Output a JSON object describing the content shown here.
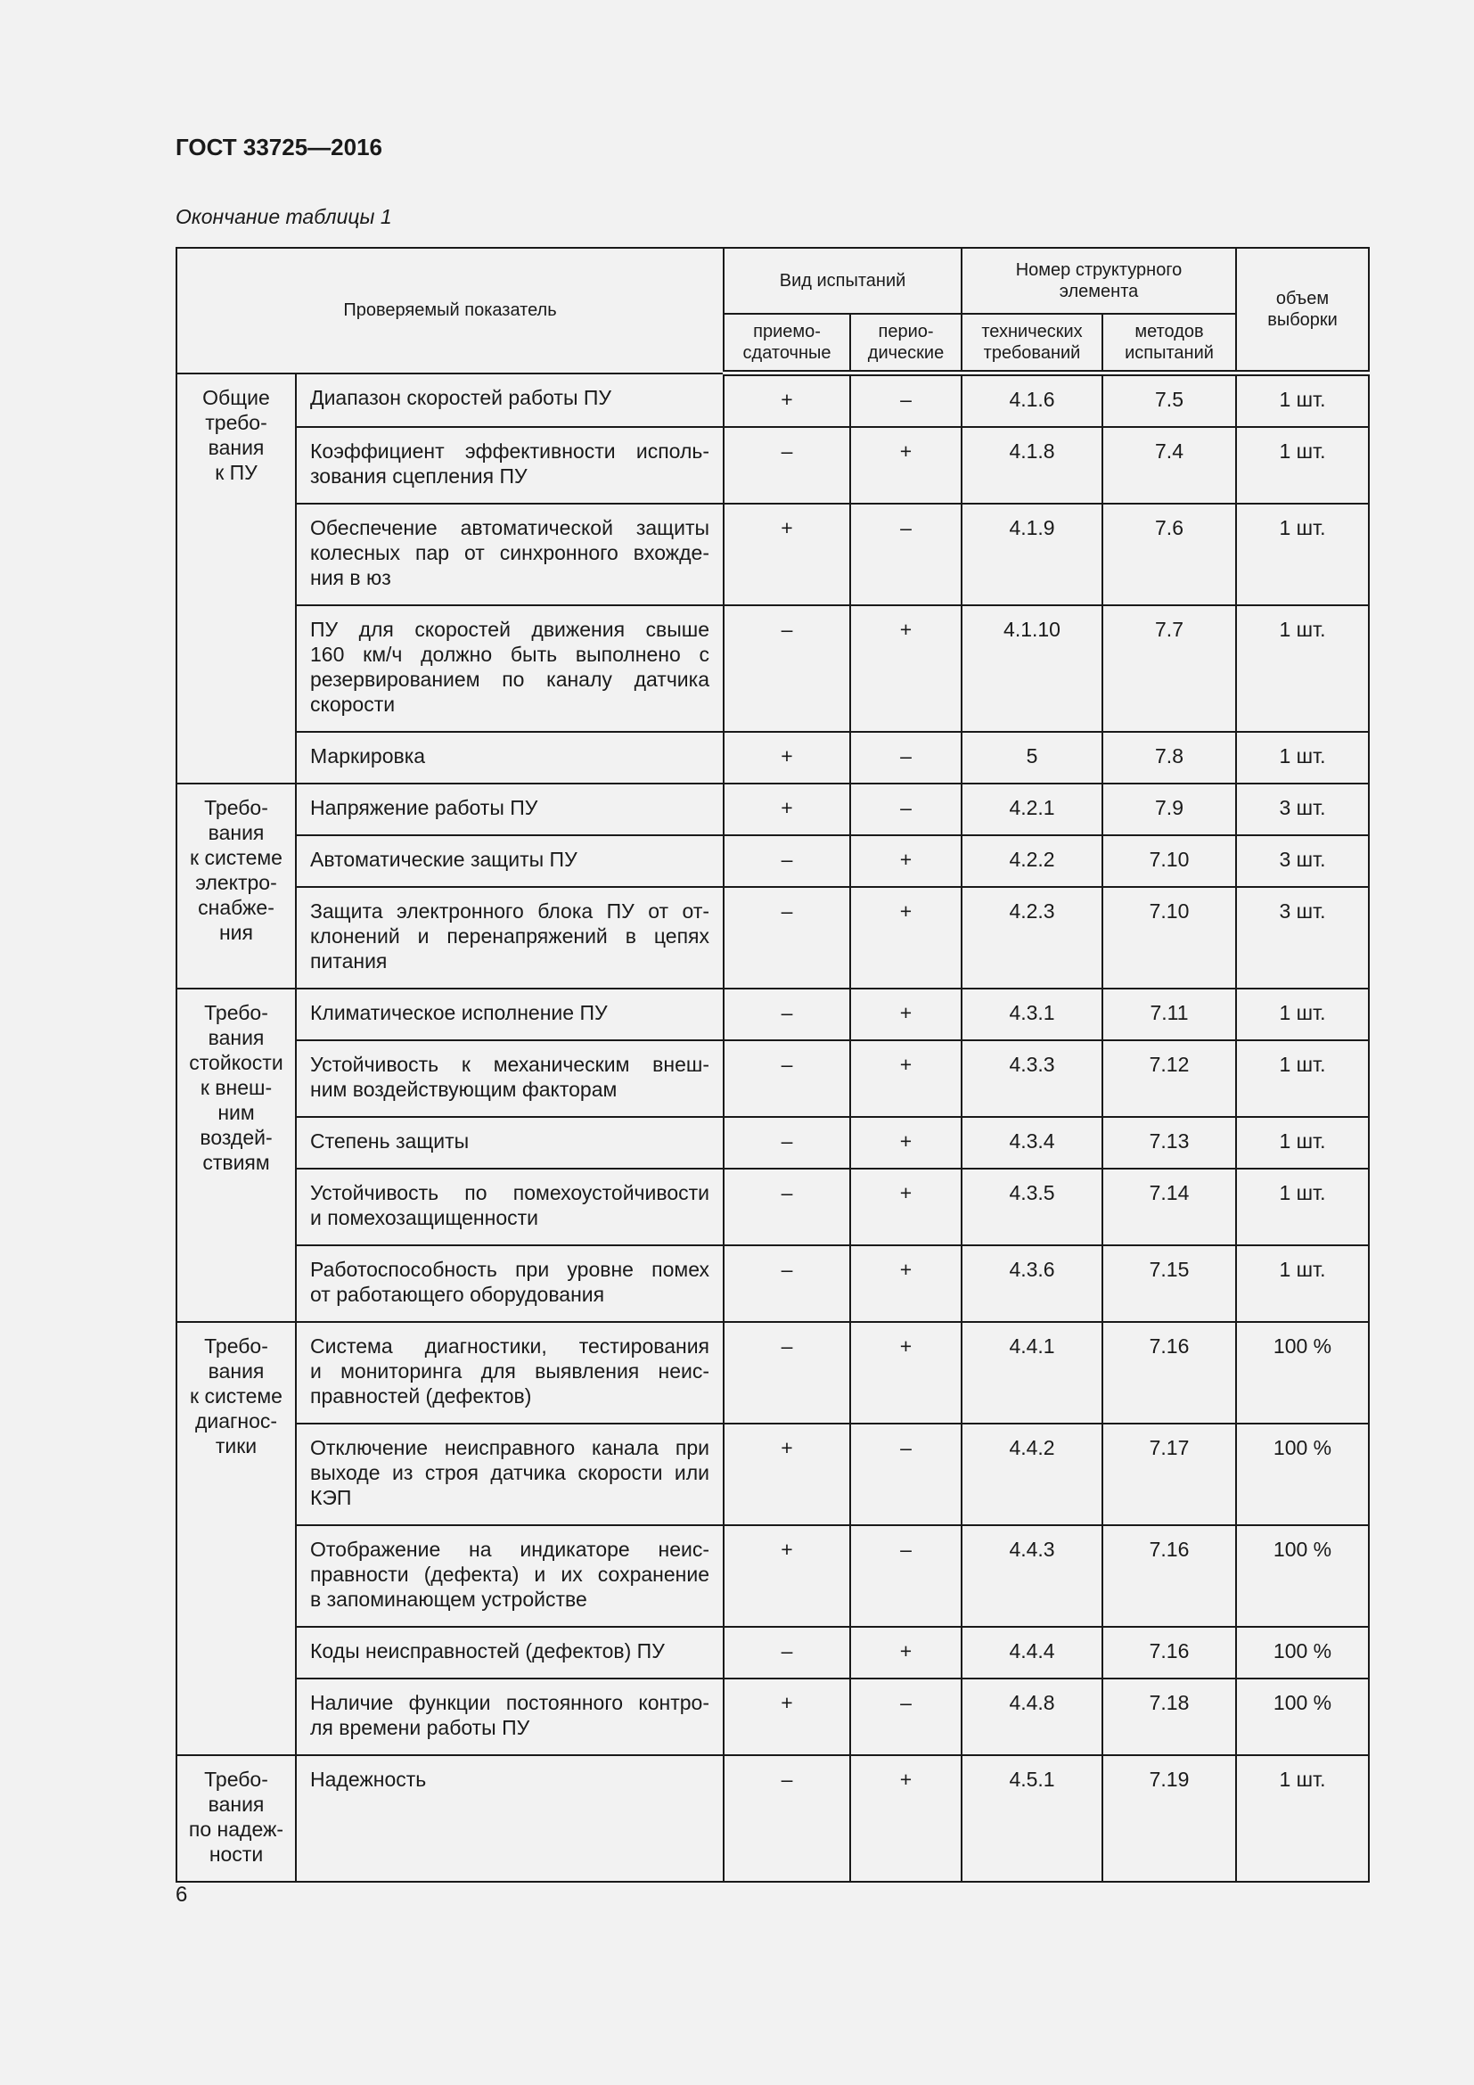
{
  "header": {
    "doc_title": "ГОСТ 33725—2016",
    "caption": "Окончание таблицы 1"
  },
  "table": {
    "head": {
      "indicator": "Проверяемый показатель",
      "test_type": "Вид испытаний",
      "acceptance": "приемо-\nсдаточные",
      "periodic": "перио-\nдические",
      "struct_number": "Номер структурного\nэлемента",
      "tech_req": "технических\nтребований",
      "test_methods": "методов\nиспытаний",
      "sample": "объем\nвыборки"
    },
    "groups": [
      {
        "label": "Общие\nтребо-\nвания\nк ПУ",
        "rows": [
          {
            "desc": [
              "Диапазон скоростей работы ПУ"
            ],
            "acc": "+",
            "per": "–",
            "tr": "4.1.6",
            "tm": "7.5",
            "vol": "1 шт."
          },
          {
            "desc": [
              "Коэффициент эффективности исполь-",
              "зования сцепления ПУ"
            ],
            "acc": "–",
            "per": "+",
            "tr": "4.1.8",
            "tm": "7.4",
            "vol": "1 шт."
          },
          {
            "desc": [
              "Обеспечение автоматической защиты",
              "колесных пар от синхронного вхожде-",
              "ния в юз"
            ],
            "acc": "+",
            "per": "–",
            "tr": "4.1.9",
            "tm": "7.6",
            "vol": "1 шт."
          },
          {
            "desc": [
              "ПУ для скоростей движения свыше",
              "160 км/ч должно быть выполнено с",
              "резервированием по каналу датчика",
              "скорости"
            ],
            "acc": "–",
            "per": "+",
            "tr": "4.1.10",
            "tm": "7.7",
            "vol": "1 шт."
          },
          {
            "desc": [
              "Маркировка"
            ],
            "acc": "+",
            "per": "–",
            "tr": "5",
            "tm": "7.8",
            "vol": "1 шт."
          }
        ]
      },
      {
        "label": "Требо-\nвания\nк системе\nэлектро-\nснабже-\nния",
        "rows": [
          {
            "desc": [
              "Напряжение работы ПУ"
            ],
            "acc": "+",
            "per": "–",
            "tr": "4.2.1",
            "tm": "7.9",
            "vol": "3 шт."
          },
          {
            "desc": [
              "Автоматические защиты ПУ"
            ],
            "acc": "–",
            "per": "+",
            "tr": "4.2.2",
            "tm": "7.10",
            "vol": "3 шт."
          },
          {
            "desc": [
              "Защита электронного блока ПУ от от-",
              "клонений и перенапряжений в цепях",
              "питания"
            ],
            "acc": "–",
            "per": "+",
            "tr": "4.2.3",
            "tm": "7.10",
            "vol": "3 шт."
          }
        ]
      },
      {
        "label": "Требо-\nвания\nстойкости\nк внеш-\nним\nвоздей-\nствиям",
        "rows": [
          {
            "desc": [
              "Климатическое исполнение ПУ"
            ],
            "acc": "–",
            "per": "+",
            "tr": "4.3.1",
            "tm": "7.11",
            "vol": "1 шт."
          },
          {
            "desc": [
              "Устойчивость к механическим внеш-",
              "ним воздействующим факторам"
            ],
            "acc": "–",
            "per": "+",
            "tr": "4.3.3",
            "tm": "7.12",
            "vol": "1 шт."
          },
          {
            "desc": [
              "Степень защиты"
            ],
            "acc": "–",
            "per": "+",
            "tr": "4.3.4",
            "tm": "7.13",
            "vol": "1 шт."
          },
          {
            "desc": [
              "Устойчивость по помехоустойчивости",
              "и помехозащищенности"
            ],
            "acc": "–",
            "per": "+",
            "tr": "4.3.5",
            "tm": "7.14",
            "vol": "1 шт."
          },
          {
            "desc": [
              "Работоспособность при уровне помех",
              "от работающего оборудования"
            ],
            "acc": "–",
            "per": "+",
            "tr": "4.3.6",
            "tm": "7.15",
            "vol": "1 шт."
          }
        ]
      },
      {
        "label": "Требо-\nвания\nк системе\nдиагнос-\nтики",
        "rows": [
          {
            "desc": [
              "Система диагностики, тестирования",
              "и мониторинга для выявления неис-",
              "правностей (дефектов)"
            ],
            "acc": "–",
            "per": "+",
            "tr": "4.4.1",
            "tm": "7.16",
            "vol": "100 %"
          },
          {
            "desc": [
              "Отключение неисправного канала при",
              "выходе из строя датчика скорости или",
              "КЭП"
            ],
            "acc": "+",
            "per": "–",
            "tr": "4.4.2",
            "tm": "7.17",
            "vol": "100 %"
          },
          {
            "desc": [
              "Отображение на индикаторе неис-",
              "правности (дефекта) и их сохранение",
              "в запоминающем устройстве"
            ],
            "acc": "+",
            "per": "–",
            "tr": "4.4.3",
            "tm": "7.16",
            "vol": "100 %"
          },
          {
            "desc": [
              "Коды неисправностей (дефектов) ПУ"
            ],
            "acc": "–",
            "per": "+",
            "tr": "4.4.4",
            "tm": "7.16",
            "vol": "100 %"
          },
          {
            "desc": [
              "Наличие функции постоянного контро-",
              "ля времени работы ПУ"
            ],
            "acc": "+",
            "per": "–",
            "tr": "4.4.8",
            "tm": "7.18",
            "vol": "100 %"
          }
        ]
      },
      {
        "label": "Требо-\nвания\nпо надеж-\nности",
        "rows": [
          {
            "desc": [
              "Надежность"
            ],
            "acc": "–",
            "per": "+",
            "tr": "4.5.1",
            "tm": "7.19",
            "vol": "1 шт."
          }
        ]
      }
    ]
  },
  "footer": {
    "page_number": "6"
  }
}
